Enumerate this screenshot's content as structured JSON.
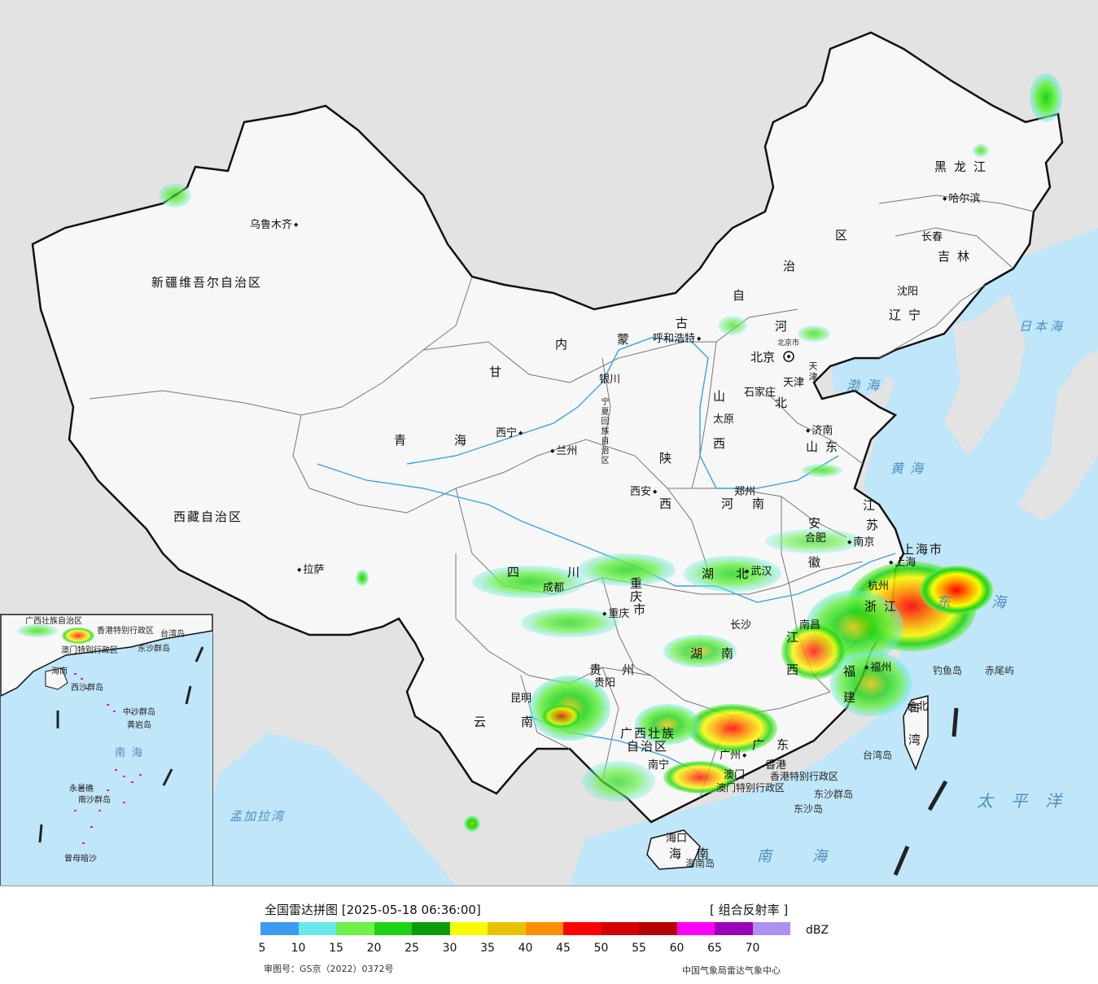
{
  "map": {
    "provinces": {
      "xinjiang": "新疆维吾尔自治区",
      "xizang": "西藏自治区",
      "qinghai_1": "青",
      "qinghai_2": "海",
      "gansu": "甘",
      "sichuan_1": "四",
      "sichuan_2": "川",
      "yunnan_1": "云",
      "yunnan_2": "南",
      "guizhou_1": "贵",
      "guizhou_2": "州",
      "neimenggu_1": "内",
      "neimenggu_2": "蒙",
      "neimenggu_3": "古",
      "neimenggu_4": "自",
      "neimenggu_5": "治",
      "neimenggu_6": "区",
      "heilongjiang": "黑龙江",
      "jilin": "吉林",
      "liaoning": "辽宁",
      "hebei_1": "河",
      "hebei_2": "北",
      "shanxi_1": "山",
      "shanxi_2": "西",
      "shaanxi_1": "陕",
      "shaanxi_2": "西",
      "ningxia": "宁夏回族自治区",
      "shandong": "山东",
      "henan_1": "河",
      "henan_2": "南",
      "jiangsu_1": "江",
      "jiangsu_2": "苏",
      "anhui_1": "安",
      "anhui_2": "徽",
      "hubei_1": "湖",
      "hubei_2": "北",
      "hunan_1": "湖",
      "hunan_2": "南",
      "jiangxi_1": "江",
      "jiangxi_2": "西",
      "zhejiang": "浙江",
      "fujian_1": "福",
      "fujian_2": "建",
      "guangdong_1": "广",
      "guangdong_2": "东",
      "guangxi_1": "广西壮族",
      "guangxi_2": "自治区",
      "hainan_1": "海",
      "hainan_2": "南",
      "chongqing_1": "重",
      "chongqing_2": "庆",
      "chongqing_3": "市",
      "shanghai": "上海市",
      "tianjin": "天津",
      "taiwan_1": "台",
      "taiwan_2": "湾",
      "hk": "香港特别行政区",
      "macau": "澳门特别行政区",
      "beijing": "北京市"
    },
    "cities": {
      "urumqi": "乌鲁木齐",
      "lhasa": "拉萨",
      "xining": "西宁",
      "lanzhou": "兰州",
      "yinchuan": "银川",
      "hohhot": "呼和浩特",
      "beijing": "北京",
      "tianjin": "天津",
      "shijiazhuang": "石家庄",
      "taiyuan": "太原",
      "jinan": "济南",
      "zhengzhou": "郑州",
      "xian": "西安",
      "hefei": "合肥",
      "nanjing": "南京",
      "shanghai": "上海",
      "hangzhou": "杭州",
      "wuhan": "武汉",
      "chengdu": "成都",
      "chongqing": "重庆",
      "guiyang": "贵阳",
      "kunming": "昆明",
      "changsha": "长沙",
      "nanchang": "南昌",
      "fuzhou": "福州",
      "taibei": "台北",
      "guangzhou": "广州",
      "hongkong": "香港",
      "macau": "澳门",
      "nanning": "南宁",
      "haikou": "海口",
      "shenyang": "沈阳",
      "changchun": "长春",
      "harbin": "哈尔滨"
    },
    "seas": {
      "japan_sea": "日本海",
      "bohai": "渤海",
      "yellow_sea": "黄海",
      "east_sea": "东海",
      "pacific": "太平洋",
      "south_sea": "南海",
      "bay_bengal": "孟加拉湾"
    },
    "islands": {
      "diaoyu": "钓鱼岛",
      "chiwei": "赤尾屿",
      "taiwan_island": "台湾岛",
      "dongsha_qundao": "东沙群岛",
      "dongsha_dao": "东沙岛",
      "hainan_dao": "海南岛"
    }
  },
  "inset": {
    "labels": {
      "guangxi": "广西壮族自治区",
      "hk": "香港特别行政区",
      "macau": "澳门特别行政区",
      "dongsha": "东沙群岛",
      "taiwan": "台湾岛",
      "hainan": "海南",
      "xisha": "西沙群岛",
      "zhongsha": "中沙群岛",
      "huangyan": "黄岩岛",
      "nansha": "南沙群岛",
      "south_sea": "南海",
      "zengmu": "曾母暗沙",
      "yongshu": "永暑礁"
    }
  },
  "legend": {
    "title": "全国雷达拼图 [2025-05-18 06:36:00]",
    "product": "[ 组合反射率 ]",
    "unit": "dBZ",
    "ticks": [
      "5",
      "10",
      "15",
      "20",
      "25",
      "30",
      "35",
      "40",
      "45",
      "50",
      "55",
      "60",
      "65",
      "70"
    ],
    "colors": [
      "#3d9af0",
      "#69e8ec",
      "#6ff04a",
      "#1ed318",
      "#0a9c0a",
      "#fafa05",
      "#e8c202",
      "#fe8f00",
      "#fe0000",
      "#d20000",
      "#b50000",
      "#fe00f6",
      "#9a02b9",
      "#ae90ee"
    ],
    "approval": "审图号：GS京（2022）0372号",
    "agency": "中国气象局雷达气象中心"
  }
}
